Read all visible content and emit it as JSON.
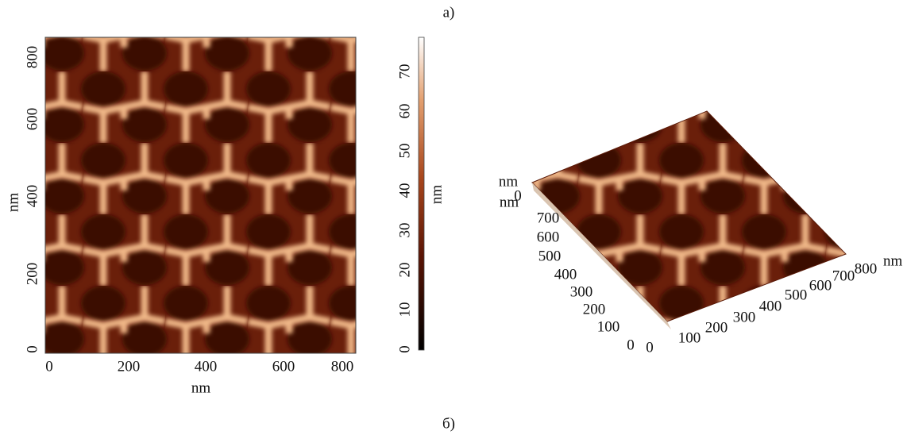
{
  "figure_labels": {
    "top": "a)",
    "bottom": "б)"
  },
  "map_2d": {
    "y_axis_label": "nm",
    "x_axis_label": "nm",
    "y_ticks": [
      "0",
      "200",
      "400",
      "600",
      "800"
    ],
    "x_ticks": [
      "0",
      "200",
      "400",
      "600",
      "800"
    ]
  },
  "colorbar": {
    "label": "nm",
    "ticks": [
      "0",
      "10",
      "20",
      "30",
      "40",
      "50",
      "60",
      "70"
    ]
  },
  "view_3d": {
    "corner_labels": [
      "nm",
      "0",
      "nm"
    ],
    "y_ticks": [
      "700",
      "600",
      "500",
      "400",
      "300",
      "200",
      "100",
      "0"
    ],
    "x_ticks": [
      "0",
      "100",
      "200",
      "300",
      "400",
      "500",
      "600",
      "700",
      "800"
    ],
    "x_axis_label": "nm"
  }
}
